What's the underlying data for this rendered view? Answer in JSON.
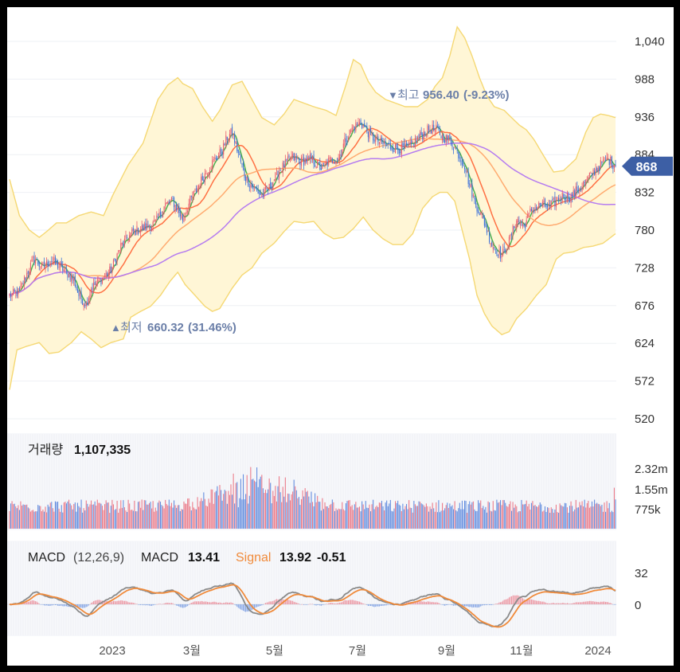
{
  "chart_data": [
    {
      "type": "candlestick",
      "title": "",
      "ylim": [
        520,
        1066
      ],
      "y_ticks": [
        "1,040",
        "988",
        "936",
        "884",
        "832",
        "780",
        "728",
        "676",
        "624",
        "572",
        "520"
      ],
      "y_tick_values": [
        1040,
        988,
        936,
        884,
        832,
        780,
        728,
        676,
        624,
        572,
        520
      ],
      "x_ticks": [
        "2023",
        "3월",
        "5월",
        "7월",
        "9월",
        "11월",
        "2024"
      ],
      "current_price": "868",
      "current_value": 868,
      "high_marker": {
        "label": "최고",
        "value": "956.40",
        "pct": "(-9.23%)"
      },
      "low_marker": {
        "label": "최저",
        "value": "660.32",
        "pct": "(31.46%)"
      },
      "close_anchors": [
        [
          0,
          690
        ],
        [
          8,
          695
        ],
        [
          14,
          720
        ],
        [
          20,
          742
        ],
        [
          26,
          728
        ],
        [
          34,
          738
        ],
        [
          42,
          728
        ],
        [
          52,
          712
        ],
        [
          56,
          690
        ],
        [
          62,
          678
        ],
        [
          66,
          700
        ],
        [
          74,
          712
        ],
        [
          82,
          725
        ],
        [
          90,
          758
        ],
        [
          100,
          778
        ],
        [
          110,
          784
        ],
        [
          118,
          790
        ],
        [
          126,
          815
        ],
        [
          132,
          820
        ],
        [
          136,
          808
        ],
        [
          140,
          795
        ],
        [
          146,
          820
        ],
        [
          154,
          845
        ],
        [
          162,
          868
        ],
        [
          172,
          890
        ],
        [
          176,
          908
        ],
        [
          180,
          915
        ],
        [
          186,
          880
        ],
        [
          190,
          855
        ],
        [
          196,
          840
        ],
        [
          204,
          828
        ],
        [
          210,
          838
        ],
        [
          218,
          862
        ],
        [
          228,
          880
        ],
        [
          236,
          875
        ],
        [
          244,
          878
        ],
        [
          252,
          865
        ],
        [
          258,
          875
        ],
        [
          266,
          880
        ],
        [
          272,
          906
        ],
        [
          278,
          922
        ],
        [
          284,
          928
        ],
        [
          292,
          910
        ],
        [
          300,
          900
        ],
        [
          308,
          895
        ],
        [
          316,
          892
        ],
        [
          324,
          895
        ],
        [
          332,
          910
        ],
        [
          340,
          920
        ],
        [
          346,
          918
        ],
        [
          350,
          908
        ],
        [
          356,
          905
        ],
        [
          362,
          888
        ],
        [
          368,
          870
        ],
        [
          372,
          842
        ],
        [
          376,
          820
        ],
        [
          380,
          805
        ],
        [
          384,
          790
        ],
        [
          390,
          760
        ],
        [
          398,
          745
        ],
        [
          404,
          765
        ],
        [
          410,
          795
        ],
        [
          416,
          785
        ],
        [
          422,
          808
        ],
        [
          430,
          815
        ],
        [
          436,
          812
        ],
        [
          442,
          820
        ],
        [
          448,
          828
        ],
        [
          454,
          825
        ],
        [
          460,
          838
        ],
        [
          466,
          846
        ],
        [
          472,
          860
        ],
        [
          478,
          870
        ],
        [
          484,
          878
        ],
        [
          490,
          868
        ]
      ],
      "band_upper_anchors": [
        [
          0,
          850
        ],
        [
          8,
          800
        ],
        [
          16,
          780
        ],
        [
          24,
          770
        ],
        [
          30,
          778
        ],
        [
          38,
          790
        ],
        [
          46,
          790
        ],
        [
          56,
          800
        ],
        [
          66,
          805
        ],
        [
          76,
          800
        ],
        [
          84,
          830
        ],
        [
          96,
          870
        ],
        [
          108,
          900
        ],
        [
          120,
          960
        ],
        [
          128,
          980
        ],
        [
          136,
          990
        ],
        [
          140,
          982
        ],
        [
          148,
          975
        ],
        [
          156,
          950
        ],
        [
          164,
          930
        ],
        [
          170,
          945
        ],
        [
          180,
          980
        ],
        [
          188,
          985
        ],
        [
          196,
          960
        ],
        [
          204,
          935
        ],
        [
          214,
          925
        ],
        [
          222,
          940
        ],
        [
          230,
          960
        ],
        [
          238,
          955
        ],
        [
          246,
          950
        ],
        [
          256,
          945
        ],
        [
          264,
          938
        ],
        [
          272,
          980
        ],
        [
          278,
          1015
        ],
        [
          284,
          1008
        ],
        [
          290,
          985
        ],
        [
          296,
          970
        ],
        [
          304,
          960
        ],
        [
          312,
          955
        ],
        [
          320,
          950
        ],
        [
          330,
          950
        ],
        [
          338,
          960
        ],
        [
          344,
          978
        ],
        [
          350,
          990
        ],
        [
          356,
          1020
        ],
        [
          362,
          1060
        ],
        [
          368,
          1045
        ],
        [
          374,
          1020
        ],
        [
          380,
          990
        ],
        [
          386,
          965
        ],
        [
          392,
          950
        ],
        [
          400,
          945
        ],
        [
          406,
          935
        ],
        [
          412,
          925
        ],
        [
          418,
          918
        ],
        [
          424,
          905
        ],
        [
          432,
          882
        ],
        [
          440,
          860
        ],
        [
          448,
          862
        ],
        [
          458,
          878
        ],
        [
          466,
          915
        ],
        [
          472,
          935
        ],
        [
          478,
          940
        ],
        [
          484,
          938
        ],
        [
          490,
          935
        ]
      ],
      "band_lower_anchors": [
        [
          0,
          560
        ],
        [
          6,
          615
        ],
        [
          14,
          620
        ],
        [
          24,
          625
        ],
        [
          32,
          610
        ],
        [
          40,
          612
        ],
        [
          50,
          625
        ],
        [
          58,
          640
        ],
        [
          66,
          630
        ],
        [
          74,
          618
        ],
        [
          82,
          625
        ],
        [
          92,
          630
        ],
        [
          98,
          660
        ],
        [
          106,
          668
        ],
        [
          114,
          675
        ],
        [
          122,
          690
        ],
        [
          130,
          710
        ],
        [
          136,
          722
        ],
        [
          142,
          705
        ],
        [
          150,
          690
        ],
        [
          158,
          675
        ],
        [
          164,
          668
        ],
        [
          170,
          672
        ],
        [
          180,
          700
        ],
        [
          188,
          718
        ],
        [
          196,
          728
        ],
        [
          204,
          748
        ],
        [
          214,
          762
        ],
        [
          222,
          778
        ],
        [
          230,
          792
        ],
        [
          238,
          790
        ],
        [
          246,
          792
        ],
        [
          254,
          776
        ],
        [
          262,
          768
        ],
        [
          270,
          770
        ],
        [
          278,
          782
        ],
        [
          286,
          798
        ],
        [
          294,
          780
        ],
        [
          302,
          768
        ],
        [
          310,
          760
        ],
        [
          318,
          760
        ],
        [
          326,
          775
        ],
        [
          334,
          810
        ],
        [
          342,
          826
        ],
        [
          348,
          832
        ],
        [
          354,
          832
        ],
        [
          360,
          820
        ],
        [
          366,
          780
        ],
        [
          372,
          740
        ],
        [
          378,
          690
        ],
        [
          384,
          665
        ],
        [
          390,
          648
        ],
        [
          398,
          636
        ],
        [
          404,
          640
        ],
        [
          410,
          658
        ],
        [
          418,
          672
        ],
        [
          426,
          690
        ],
        [
          434,
          705
        ],
        [
          442,
          740
        ],
        [
          448,
          748
        ],
        [
          456,
          750
        ],
        [
          464,
          756
        ],
        [
          472,
          758
        ],
        [
          480,
          762
        ],
        [
          490,
          775
        ]
      ],
      "ma_series": [
        {
          "color": "#4caf50",
          "window": 5
        },
        {
          "color": "#ff7043",
          "window": 20
        },
        {
          "color": "#ffab70",
          "window": 60
        },
        {
          "color": "#b57cf0",
          "window": 120
        }
      ]
    },
    {
      "type": "bar",
      "title": "거래량",
      "value": "1,107,335",
      "y_ticks": [
        "2.32m",
        "1.55m",
        "775k"
      ],
      "y_tick_values": [
        2320000,
        1550000,
        775000
      ]
    },
    {
      "type": "line",
      "title": "MACD",
      "params": "(12,26,9)",
      "macd_label": "MACD",
      "macd_value": "13.41",
      "signal_label": "Signal",
      "signal_value": "13.92",
      "hist_value": "-0.51",
      "y_ticks": [
        "32",
        "0"
      ],
      "y_tick_values": [
        32,
        0
      ]
    }
  ],
  "colors": {
    "up": "#e85b6d",
    "down": "#3f73d8",
    "band_fill": "#fff6d6",
    "band_line": "#f5d873",
    "macd_line": "#8a8a8a",
    "signal_line": "#f08a3a",
    "badge": "#3d5fa5",
    "marker_text": "#6b7fa8"
  }
}
